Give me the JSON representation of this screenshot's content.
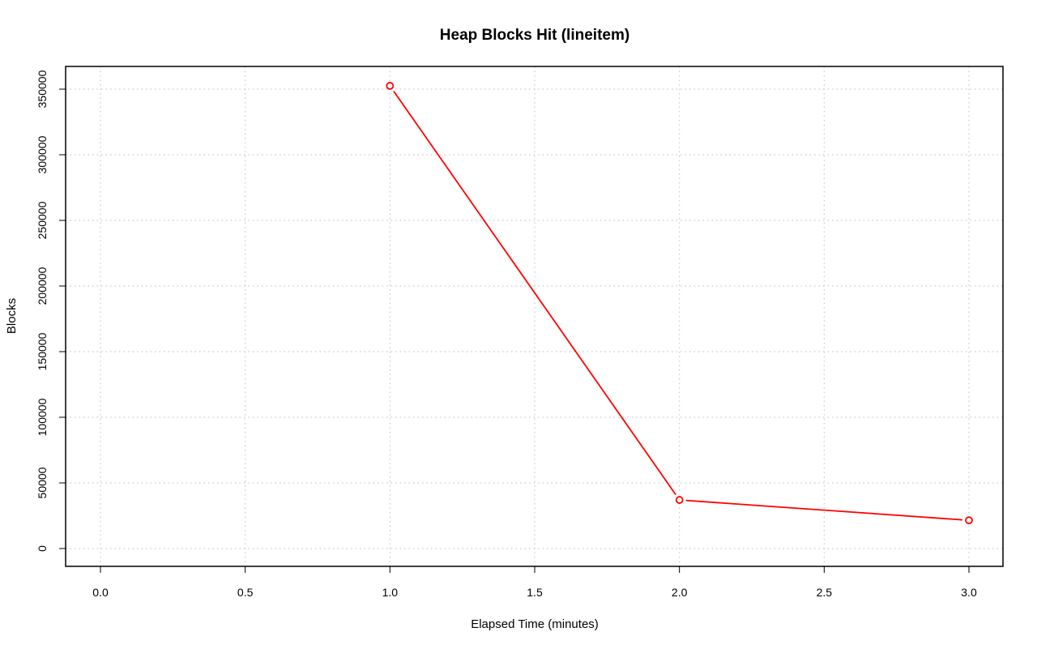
{
  "chart_data": {
    "type": "line",
    "title": "Heap Blocks Hit (lineitem)",
    "xlabel": "Elapsed Time (minutes)",
    "ylabel": "Blocks",
    "xlim": [
      0.0,
      3.0
    ],
    "ylim": [
      0,
      350000
    ],
    "x_ticks": [
      0.0,
      0.5,
      1.0,
      1.5,
      2.0,
      2.5,
      3.0
    ],
    "x_tick_labels": [
      "0.0",
      "0.5",
      "1.0",
      "1.5",
      "2.0",
      "2.5",
      "3.0"
    ],
    "y_ticks": [
      0,
      50000,
      100000,
      150000,
      200000,
      250000,
      300000,
      350000
    ],
    "y_tick_labels": [
      "0",
      "50000",
      "100000",
      "150000",
      "200000",
      "250000",
      "300000",
      "350000"
    ],
    "grid": true,
    "series": [
      {
        "color": "#ff0000",
        "marker": "open-circle",
        "x": [
          1.0,
          2.0,
          3.0
        ],
        "y": [
          352500,
          37000,
          21500
        ]
      }
    ]
  }
}
